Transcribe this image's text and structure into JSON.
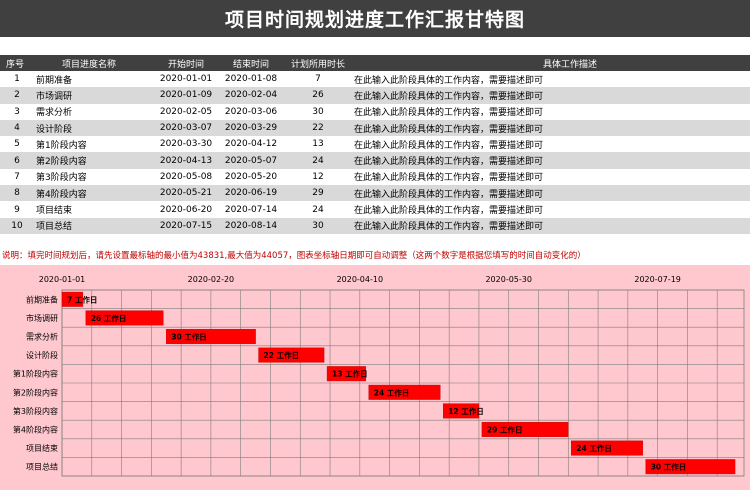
{
  "title": "项目时间规划进度工作汇报甘特图",
  "headers": [
    "序号",
    "项目进度名称",
    "开始时间",
    "结束时间",
    "计划所用时长",
    "具体工作描述"
  ],
  "rows": [
    {
      "no": "1",
      "name": "前期准备",
      "start": "2020-01-01",
      "end": "2020-01-08",
      "days": "7",
      "desc": "在此输入此阶段具体的工作内容，需要描述即可"
    },
    {
      "no": "2",
      "name": "市场调研",
      "start": "2020-01-09",
      "end": "2020-02-04",
      "days": "26",
      "desc": "在此输入此阶段具体的工作内容，需要描述即可"
    },
    {
      "no": "3",
      "name": "需求分析",
      "start": "2020-02-05",
      "end": "2020-03-06",
      "days": "30",
      "desc": "在此输入此阶段具体的工作内容，需要描述即可"
    },
    {
      "no": "4",
      "name": "设计阶段",
      "start": "2020-03-07",
      "end": "2020-03-29",
      "days": "22",
      "desc": "在此输入此阶段具体的工作内容，需要描述即可"
    },
    {
      "no": "5",
      "name": "第1阶段内容",
      "start": "2020-03-30",
      "end": "2020-04-12",
      "days": "13",
      "desc": "在此输入此阶段具体的工作内容，需要描述即可"
    },
    {
      "no": "6",
      "name": "第2阶段内容",
      "start": "2020-04-13",
      "end": "2020-05-07",
      "days": "24",
      "desc": "在此输入此阶段具体的工作内容，需要描述即可"
    },
    {
      "no": "7",
      "name": "第3阶段内容",
      "start": "2020-05-08",
      "end": "2020-05-20",
      "days": "12",
      "desc": "在此输入此阶段具体的工作内容，需要描述即可"
    },
    {
      "no": "8",
      "name": "第4阶段内容",
      "start": "2020-05-21",
      "end": "2020-06-19",
      "days": "29",
      "desc": "在此输入此阶段具体的工作内容，需要描述即可"
    },
    {
      "no": "9",
      "name": "项目结束",
      "start": "2020-06-20",
      "end": "2020-07-14",
      "days": "24",
      "desc": "在此输入此阶段具体的工作内容，需要描述即可"
    },
    {
      "no": "10",
      "name": "项目总结",
      "start": "2020-07-15",
      "end": "2020-08-14",
      "days": "30",
      "desc": "在此输入此阶段具体的工作内容，需要描述即可"
    }
  ],
  "note": "说明：填完时间规划后，请先设置最标轴的最小值为43831,最大值为44057，图表坐标轴日期即可自动调整（这两个数字是根据您填写的时间自动变化的）",
  "colors": {
    "header_bg": "#404040",
    "band": "#d9d9d9",
    "chart_bg": "#ffc7ce",
    "bar": "#ff0000",
    "note": "#c00000"
  },
  "chart_data": {
    "type": "bar",
    "orientation": "horizontal-gantt",
    "categories": [
      "前期准备",
      "市场调研",
      "需求分析",
      "设计阶段",
      "第1阶段内容",
      "第2阶段内容",
      "第3阶段内容",
      "第4阶段内容",
      "项目结束",
      "项目总结"
    ],
    "start_dates": [
      "2020-01-01",
      "2020-01-09",
      "2020-02-05",
      "2020-03-07",
      "2020-03-30",
      "2020-04-13",
      "2020-05-08",
      "2020-05-21",
      "2020-06-20",
      "2020-07-15"
    ],
    "durations": [
      7,
      26,
      30,
      22,
      13,
      24,
      12,
      29,
      24,
      30
    ],
    "bar_labels": [
      "7 工作日",
      "26 工作日",
      "30 工作日",
      "22 工作日",
      "13 工作日",
      "24 工作日",
      "12 工作日",
      "29 工作日",
      "24 工作日",
      "30 工作日"
    ],
    "x_ticks": [
      "2020-01-01",
      "2020-02-20",
      "2020-04-10",
      "2020-05-30",
      "2020-07-19"
    ],
    "x_range": [
      "2020-01-01",
      "2020-08-17"
    ],
    "axis_position": "top",
    "grid": true
  }
}
